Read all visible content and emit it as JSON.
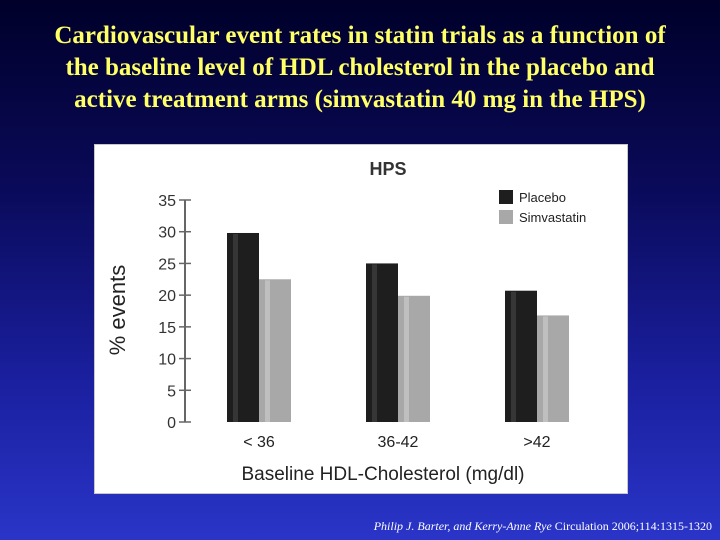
{
  "slide": {
    "title_lines": [
      "Cardiovascular event rates in statin trials as a function of",
      "the baseline level of HDL cholesterol in the placebo and",
      "active treatment arms (simvastatin 40 mg in the HPS)"
    ],
    "citation_authors": "Philip J. Barter, and Kerry-Anne Rye",
    "citation_source": " Circulation 2006;114:1315-1320"
  },
  "colors": {
    "title": "#ffff66",
    "placebo": "#1e1e1e",
    "simvastatin": "#a8a8a8"
  },
  "chart_data": {
    "type": "bar",
    "title": "HPS",
    "xlabel": "Baseline HDL-Cholesterol (mg/dl)",
    "ylabel": "% events",
    "categories": [
      "< 36",
      "36-42",
      ">42"
    ],
    "series": [
      {
        "name": "Placebo",
        "values": [
          29.8,
          25.0,
          20.7
        ]
      },
      {
        "name": "Simvastatin",
        "values": [
          22.5,
          19.9,
          16.8
        ]
      }
    ],
    "yticks": [
      0,
      5,
      10,
      15,
      20,
      25,
      30,
      35
    ],
    "ylim": [
      0,
      35
    ],
    "grid": false,
    "legend_position": "top-right"
  }
}
